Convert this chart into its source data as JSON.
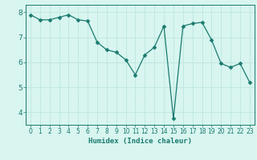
{
  "x": [
    0,
    1,
    2,
    3,
    4,
    5,
    6,
    7,
    8,
    9,
    10,
    11,
    12,
    13,
    14,
    15,
    16,
    17,
    18,
    19,
    20,
    21,
    22,
    23
  ],
  "y": [
    7.9,
    7.7,
    7.7,
    7.8,
    7.9,
    7.7,
    7.65,
    6.8,
    6.5,
    6.4,
    6.1,
    5.5,
    6.3,
    6.6,
    7.45,
    3.75,
    7.45,
    7.55,
    7.6,
    6.9,
    5.95,
    5.8,
    5.95,
    5.2
  ],
  "line_color": "#1a7a6e",
  "marker": "D",
  "marker_size": 2.5,
  "bg_color": "#d8f5f0",
  "grid_color": "#c0e8e0",
  "tick_color": "#1a7a6e",
  "spine_color": "#1a7a6e",
  "xlabel": "Humidex (Indice chaleur)",
  "ylim": [
    3.5,
    8.3
  ],
  "xlim": [
    -0.5,
    23.5
  ],
  "yticks": [
    4,
    5,
    6,
    7,
    8
  ],
  "xticks": [
    0,
    1,
    2,
    3,
    4,
    5,
    6,
    7,
    8,
    9,
    10,
    11,
    12,
    13,
    14,
    15,
    16,
    17,
    18,
    19,
    20,
    21,
    22,
    23
  ],
  "xlabel_fontsize": 6.5,
  "tick_fontsize_x": 5.5,
  "tick_fontsize_y": 6.5
}
